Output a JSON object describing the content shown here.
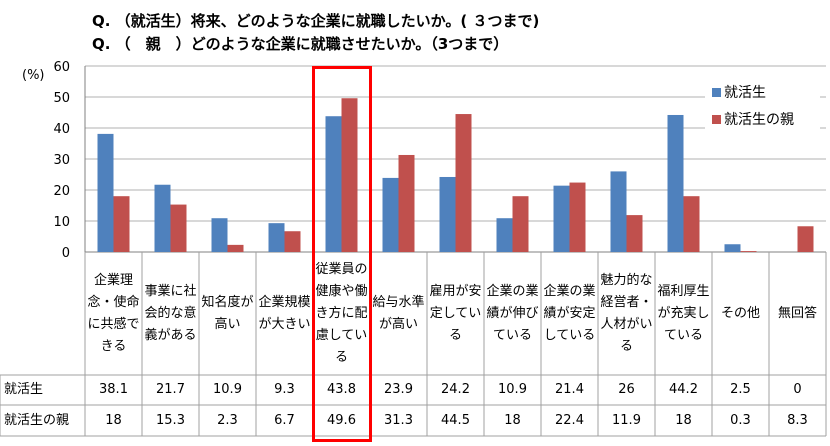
{
  "chart_data": {
    "type": "bar",
    "title_lines": [
      "Q. （就活生）将来、どのような企業に就職したいか。( ３つまで)",
      "Q. （　親　）どのような企業に就職させたいか。（3つまで）"
    ],
    "ylabel": "(%)",
    "ylim": [
      0,
      60
    ],
    "yticks": [
      0,
      10,
      20,
      30,
      40,
      50,
      60
    ],
    "grid": true,
    "legend_position": "right",
    "categories": [
      "企業理念・使命に共感できる",
      "事業に社会的な意義がある",
      "知名度が高い",
      "企業規模が大きい",
      "従業員の健康や働き方に配慮している",
      "給与水準が高い",
      "雇用が安定している",
      "企業の業績が伸びている",
      "企業の業績が安定している",
      "魅力的な経営者・人材がいる",
      "福利厚生が充実している",
      "その他",
      "無回答"
    ],
    "series": [
      {
        "name": "就活生",
        "color": "#4F81BD",
        "values": [
          38.1,
          21.7,
          10.9,
          9.3,
          43.8,
          23.9,
          24.2,
          10.9,
          21.4,
          26,
          44.2,
          2.5,
          0
        ]
      },
      {
        "name": "就活生の親",
        "color": "#C0504D",
        "values": [
          18,
          15.3,
          2.3,
          6.7,
          49.6,
          31.3,
          44.5,
          18,
          22.4,
          11.9,
          18,
          0.3,
          8.3
        ]
      }
    ],
    "value_labels": [
      [
        "38.1",
        "21.7",
        "10.9",
        "9.3",
        "43.8",
        "23.9",
        "24.2",
        "10.9",
        "21.4",
        "26",
        "44.2",
        "2.5",
        "0"
      ],
      [
        "18",
        "15.3",
        "2.3",
        "6.7",
        "49.6",
        "31.3",
        "44.5",
        "18",
        "22.4",
        "11.9",
        "18",
        "0.3",
        "8.3"
      ]
    ],
    "highlight": {
      "category_index": 4,
      "color": "#FF0000"
    }
  }
}
